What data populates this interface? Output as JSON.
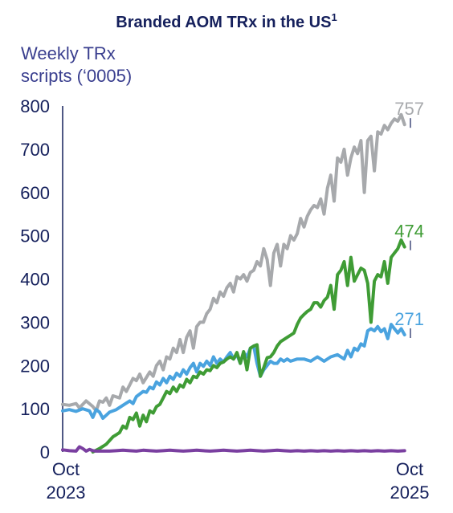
{
  "chart_data": {
    "type": "line",
    "title": "Branded AOM TRx in the US",
    "title_superscript": "1",
    "ylabel_line1": "Weekly TRx",
    "ylabel_line2": "scripts (‘0005)",
    "ylim": [
      0,
      800
    ],
    "yticks": [
      "0",
      "100",
      "200",
      "300",
      "400",
      "500",
      "600",
      "700",
      "800"
    ],
    "xticks": [
      {
        "line1": "Oct",
        "line2": "2023"
      },
      {
        "line1": "Oct",
        "line2": "2025"
      }
    ],
    "x_range_weeks": [
      0,
      104
    ],
    "grid": false,
    "legend": "none",
    "series": [
      {
        "color": "#a7a9ac",
        "end_label": "757",
        "points": [
          [
            0,
            110
          ],
          [
            2,
            108
          ],
          [
            4,
            112
          ],
          [
            5,
            102
          ],
          [
            7,
            118
          ],
          [
            9,
            105
          ],
          [
            10,
            95
          ],
          [
            11,
            118
          ],
          [
            12,
            115
          ],
          [
            13,
            125
          ],
          [
            14,
            108
          ],
          [
            15,
            130
          ],
          [
            17,
            125
          ],
          [
            18,
            150
          ],
          [
            19,
            140
          ],
          [
            20,
            155
          ],
          [
            21,
            170
          ],
          [
            22,
            165
          ],
          [
            23,
            180
          ],
          [
            24,
            160
          ],
          [
            26,
            185
          ],
          [
            27,
            175
          ],
          [
            28,
            200
          ],
          [
            29,
            210
          ],
          [
            30,
            190
          ],
          [
            31,
            220
          ],
          [
            32,
            215
          ],
          [
            33,
            240
          ],
          [
            34,
            230
          ],
          [
            35,
            260
          ],
          [
            36,
            230
          ],
          [
            37,
            265
          ],
          [
            38,
            280
          ],
          [
            39,
            240
          ],
          [
            40,
            290
          ],
          [
            41,
            300
          ],
          [
            42,
            300
          ],
          [
            43,
            320
          ],
          [
            44,
            330
          ],
          [
            45,
            355
          ],
          [
            46,
            345
          ],
          [
            47,
            370
          ],
          [
            48,
            360
          ],
          [
            49,
            380
          ],
          [
            50,
            390
          ],
          [
            51,
            370
          ],
          [
            52,
            405
          ],
          [
            53,
            400
          ],
          [
            54,
            410
          ],
          [
            55,
            395
          ],
          [
            56,
            415
          ],
          [
            57,
            420
          ],
          [
            58,
            440
          ],
          [
            59,
            430
          ],
          [
            60,
            470
          ],
          [
            61,
            445
          ],
          [
            62,
            385
          ],
          [
            63,
            460
          ],
          [
            64,
            480
          ],
          [
            65,
            430
          ],
          [
            66,
            480
          ],
          [
            67,
            470
          ],
          [
            68,
            500
          ],
          [
            69,
            490
          ],
          [
            70,
            505
          ],
          [
            71,
            540
          ],
          [
            72,
            520
          ],
          [
            73,
            545
          ],
          [
            74,
            560
          ],
          [
            75,
            570
          ],
          [
            76,
            565
          ],
          [
            77,
            585
          ],
          [
            78,
            550
          ],
          [
            79,
            610
          ],
          [
            80,
            640
          ],
          [
            81,
            580
          ],
          [
            82,
            680
          ],
          [
            83,
            670
          ],
          [
            84,
            700
          ],
          [
            85,
            640
          ],
          [
            86,
            680
          ],
          [
            87,
            705
          ],
          [
            88,
            690
          ],
          [
            89,
            720
          ],
          [
            90,
            600
          ],
          [
            91,
            720
          ],
          [
            92,
            730
          ],
          [
            93,
            650
          ],
          [
            94,
            740
          ],
          [
            95,
            735
          ],
          [
            96,
            755
          ],
          [
            97,
            745
          ],
          [
            98,
            760
          ],
          [
            99,
            770
          ],
          [
            100,
            765
          ],
          [
            101,
            780
          ],
          [
            102,
            757
          ]
        ]
      },
      {
        "color": "#4aa3df",
        "end_label": "271",
        "points": [
          [
            0,
            95
          ],
          [
            2,
            98
          ],
          [
            4,
            94
          ],
          [
            6,
            100
          ],
          [
            8,
            95
          ],
          [
            9,
            80
          ],
          [
            10,
            98
          ],
          [
            11,
            92
          ],
          [
            12,
            78
          ],
          [
            13,
            85
          ],
          [
            14,
            92
          ],
          [
            16,
            98
          ],
          [
            18,
            108
          ],
          [
            20,
            118
          ],
          [
            21,
            112
          ],
          [
            22,
            128
          ],
          [
            24,
            140
          ],
          [
            25,
            138
          ],
          [
            26,
            150
          ],
          [
            27,
            146
          ],
          [
            28,
            162
          ],
          [
            29,
            155
          ],
          [
            30,
            170
          ],
          [
            31,
            160
          ],
          [
            32,
            175
          ],
          [
            33,
            168
          ],
          [
            34,
            182
          ],
          [
            35,
            175
          ],
          [
            36,
            190
          ],
          [
            37,
            180
          ],
          [
            38,
            195
          ],
          [
            39,
            205
          ],
          [
            40,
            185
          ],
          [
            41,
            205
          ],
          [
            42,
            198
          ],
          [
            43,
            210
          ],
          [
            44,
            200
          ],
          [
            45,
            220
          ],
          [
            46,
            205
          ],
          [
            47,
            215
          ],
          [
            48,
            208
          ],
          [
            49,
            220
          ],
          [
            50,
            230
          ],
          [
            51,
            215
          ],
          [
            52,
            225
          ],
          [
            53,
            205
          ],
          [
            54,
            230
          ],
          [
            55,
            220
          ],
          [
            56,
            240
          ],
          [
            57,
            245
          ],
          [
            58,
            205
          ],
          [
            59,
            175
          ],
          [
            60,
            190
          ],
          [
            61,
            200
          ],
          [
            62,
            210
          ],
          [
            63,
            205
          ],
          [
            64,
            205
          ],
          [
            65,
            215
          ],
          [
            66,
            210
          ],
          [
            67,
            215
          ],
          [
            68,
            210
          ],
          [
            70,
            215
          ],
          [
            72,
            215
          ],
          [
            74,
            210
          ],
          [
            76,
            220
          ],
          [
            78,
            210
          ],
          [
            80,
            220
          ],
          [
            82,
            225
          ],
          [
            84,
            215
          ],
          [
            85,
            235
          ],
          [
            86,
            220
          ],
          [
            87,
            240
          ],
          [
            88,
            235
          ],
          [
            89,
            250
          ],
          [
            90,
            245
          ],
          [
            91,
            280
          ],
          [
            92,
            285
          ],
          [
            93,
            280
          ],
          [
            94,
            290
          ],
          [
            95,
            278
          ],
          [
            96,
            285
          ],
          [
            97,
            262
          ],
          [
            98,
            295
          ],
          [
            99,
            285
          ],
          [
            100,
            275
          ],
          [
            101,
            285
          ],
          [
            102,
            271
          ]
        ]
      },
      {
        "color": "#3f9c35",
        "end_label": "474",
        "points": [
          [
            9,
            0
          ],
          [
            11,
            8
          ],
          [
            13,
            18
          ],
          [
            15,
            35
          ],
          [
            16,
            40
          ],
          [
            17,
            45
          ],
          [
            18,
            60
          ],
          [
            19,
            55
          ],
          [
            20,
            80
          ],
          [
            21,
            75
          ],
          [
            22,
            90
          ],
          [
            23,
            60
          ],
          [
            24,
            85
          ],
          [
            25,
            70
          ],
          [
            26,
            95
          ],
          [
            27,
            90
          ],
          [
            28,
            105
          ],
          [
            29,
            110
          ],
          [
            30,
            125
          ],
          [
            31,
            140
          ],
          [
            32,
            135
          ],
          [
            33,
            150
          ],
          [
            34,
            140
          ],
          [
            35,
            155
          ],
          [
            36,
            150
          ],
          [
            37,
            168
          ],
          [
            38,
            160
          ],
          [
            39,
            175
          ],
          [
            40,
            172
          ],
          [
            41,
            185
          ],
          [
            42,
            180
          ],
          [
            43,
            190
          ],
          [
            44,
            188
          ],
          [
            45,
            200
          ],
          [
            46,
            195
          ],
          [
            47,
            205
          ],
          [
            48,
            208
          ],
          [
            49,
            215
          ],
          [
            50,
            220
          ],
          [
            51,
            215
          ],
          [
            52,
            230
          ],
          [
            53,
            205
          ],
          [
            54,
            232
          ],
          [
            55,
            190
          ],
          [
            56,
            240
          ],
          [
            57,
            245
          ],
          [
            58,
            248
          ],
          [
            59,
            175
          ],
          [
            60,
            195
          ],
          [
            61,
            218
          ],
          [
            62,
            220
          ],
          [
            63,
            230
          ],
          [
            64,
            245
          ],
          [
            65,
            255
          ],
          [
            66,
            260
          ],
          [
            67,
            265
          ],
          [
            68,
            270
          ],
          [
            69,
            275
          ],
          [
            70,
            295
          ],
          [
            71,
            310
          ],
          [
            72,
            318
          ],
          [
            73,
            325
          ],
          [
            74,
            330
          ],
          [
            75,
            345
          ],
          [
            76,
            345
          ],
          [
            77,
            335
          ],
          [
            78,
            350
          ],
          [
            79,
            358
          ],
          [
            80,
            385
          ],
          [
            81,
            330
          ],
          [
            82,
            410
          ],
          [
            83,
            420
          ],
          [
            84,
            440
          ],
          [
            85,
            385
          ],
          [
            86,
            450
          ],
          [
            87,
            395
          ],
          [
            88,
            410
          ],
          [
            89,
            425
          ],
          [
            90,
            420
          ],
          [
            91,
            390
          ],
          [
            92,
            300
          ],
          [
            93,
            395
          ],
          [
            94,
            410
          ],
          [
            95,
            405
          ],
          [
            96,
            440
          ],
          [
            97,
            390
          ],
          [
            98,
            450
          ],
          [
            99,
            460
          ],
          [
            100,
            470
          ],
          [
            101,
            490
          ],
          [
            102,
            474
          ]
        ]
      },
      {
        "color": "#7a3fa0",
        "end_label": "",
        "points": [
          [
            0,
            5
          ],
          [
            2,
            3
          ],
          [
            4,
            2
          ],
          [
            5,
            12
          ],
          [
            6,
            8
          ],
          [
            7,
            2
          ],
          [
            8,
            6
          ],
          [
            9,
            3
          ],
          [
            10,
            2
          ],
          [
            12,
            2
          ],
          [
            14,
            2
          ],
          [
            16,
            3
          ],
          [
            18,
            4
          ],
          [
            20,
            3
          ],
          [
            22,
            2
          ],
          [
            24,
            4
          ],
          [
            26,
            3
          ],
          [
            28,
            2
          ],
          [
            30,
            3
          ],
          [
            32,
            4
          ],
          [
            34,
            3
          ],
          [
            36,
            2
          ],
          [
            38,
            3
          ],
          [
            40,
            4
          ],
          [
            42,
            3
          ],
          [
            44,
            2
          ],
          [
            46,
            3
          ],
          [
            48,
            4
          ],
          [
            50,
            3
          ],
          [
            52,
            2
          ],
          [
            54,
            3
          ],
          [
            56,
            4
          ],
          [
            58,
            3
          ],
          [
            60,
            2
          ],
          [
            62,
            3
          ],
          [
            64,
            4
          ],
          [
            66,
            3
          ],
          [
            68,
            2
          ],
          [
            70,
            3
          ],
          [
            72,
            2
          ],
          [
            74,
            3
          ],
          [
            76,
            2
          ],
          [
            78,
            3
          ],
          [
            80,
            2
          ],
          [
            82,
            3
          ],
          [
            84,
            2
          ],
          [
            86,
            3
          ],
          [
            88,
            2
          ],
          [
            90,
            3
          ],
          [
            92,
            2
          ],
          [
            94,
            3
          ],
          [
            96,
            2
          ],
          [
            98,
            3
          ],
          [
            100,
            2
          ],
          [
            102,
            3
          ]
        ]
      }
    ]
  }
}
